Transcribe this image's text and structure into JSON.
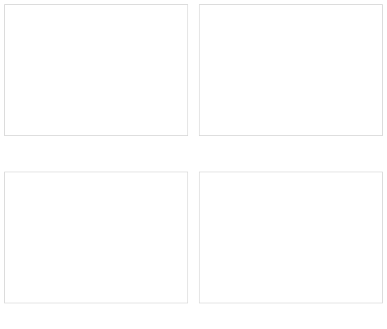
{
  "captions": [
    "",
    ""
  ],
  "sources": [
    "",
    "",
    "",
    ""
  ],
  "chart_data": [
    {
      "type": "line",
      "title": "",
      "x": [],
      "y_ticks": [],
      "series": []
    },
    {
      "type": "line",
      "title": "",
      "x": [],
      "y_ticks": [],
      "series": []
    },
    {
      "type": "line",
      "title": "",
      "x": [],
      "y_ticks": [],
      "series": []
    },
    {
      "type": "line",
      "title": "",
      "x": [],
      "y_ticks": [],
      "series": []
    }
  ]
}
